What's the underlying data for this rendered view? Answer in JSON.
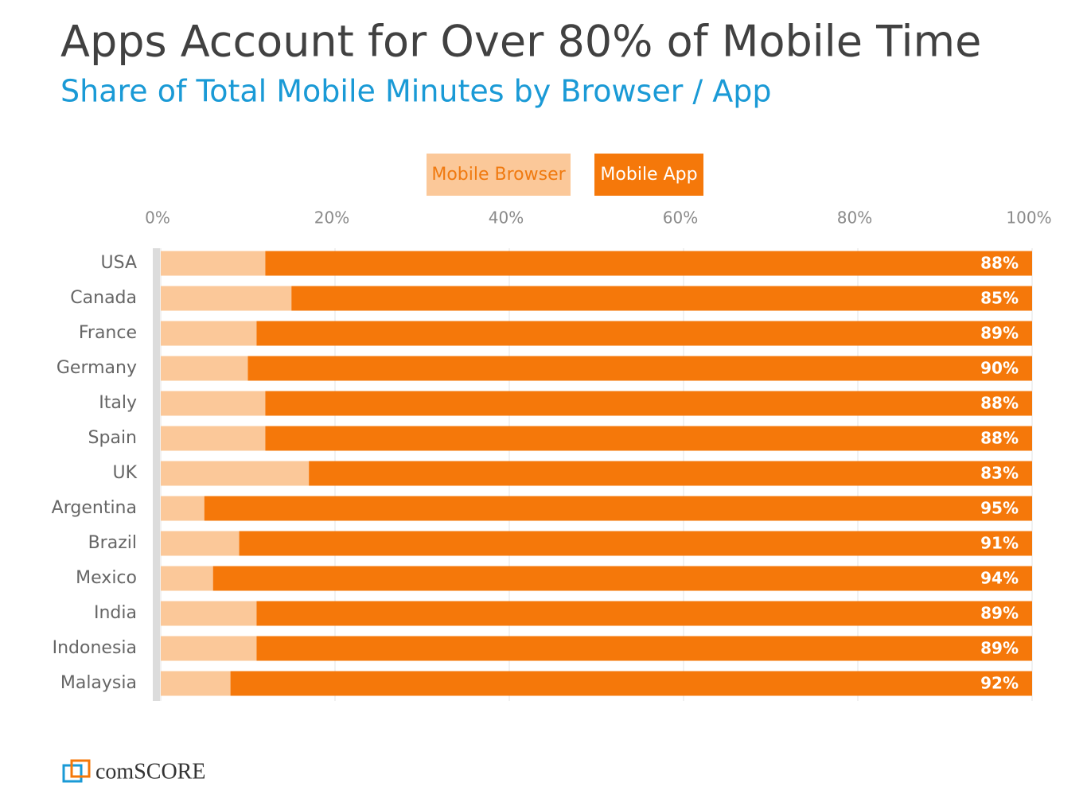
{
  "chart_data": {
    "type": "stacked_barh",
    "title": "Apps Account for Over 80% of Mobile Time",
    "subtitle": "Share of Total Mobile Minutes by Browser / App",
    "categories": [
      "USA",
      "Canada",
      "France",
      "Germany",
      "Italy",
      "Spain",
      "UK",
      "Argentina",
      "Brazil",
      "Mexico",
      "India",
      "Indonesia",
      "Malaysia"
    ],
    "series": [
      {
        "name": "Mobile Browser",
        "color": "#fbc899",
        "values": [
          12,
          15,
          11,
          10,
          12,
          12,
          17,
          5,
          9,
          6,
          11,
          11,
          8
        ]
      },
      {
        "name": "Mobile App",
        "color": "#f5780a",
        "values": [
          88,
          85,
          89,
          90,
          88,
          88,
          83,
          95,
          91,
          94,
          89,
          89,
          92
        ],
        "value_labels": [
          "88%",
          "85%",
          "89%",
          "90%",
          "88%",
          "88%",
          "83%",
          "95%",
          "91%",
          "94%",
          "89%",
          "89%",
          "92%"
        ]
      }
    ],
    "xlim": [
      0,
      100
    ],
    "xticks": [
      {
        "value": 0,
        "label": "0%"
      },
      {
        "value": 20,
        "label": "20%"
      },
      {
        "value": 40,
        "label": "40%"
      },
      {
        "value": 60,
        "label": "60%"
      },
      {
        "value": 80,
        "label": "80%"
      },
      {
        "value": 100,
        "label": "100%"
      }
    ],
    "grid": true,
    "legend": "top"
  },
  "logo": "comSCORE"
}
